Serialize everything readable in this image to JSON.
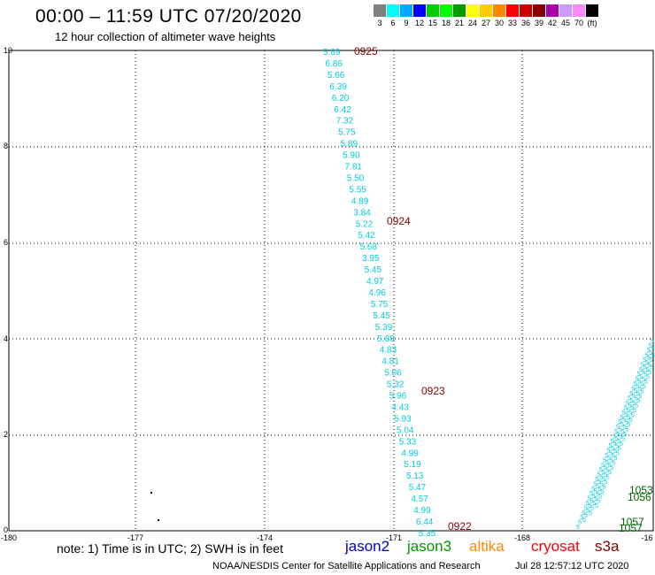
{
  "header": {
    "title": "00:00 – 11:59 UTC 07/20/2020",
    "subtitle": "12 hour collection of altimeter wave heights"
  },
  "legend": {
    "colors": [
      "#808080",
      "#00ffff",
      "#00aaff",
      "#0000ff",
      "#00cc00",
      "#00ff00",
      "#009900",
      "#ffff00",
      "#ffcc00",
      "#ff8800",
      "#ff0000",
      "#cc0000",
      "#880000",
      "#aa00aa",
      "#cc99ff",
      "#ff88ff",
      "#000000"
    ],
    "labels": [
      "3",
      "6",
      "9",
      "12",
      "15",
      "18",
      "21",
      "24",
      "27",
      "30",
      "33",
      "36",
      "39",
      "42",
      "45",
      "70",
      "(ft)"
    ]
  },
  "map": {
    "x_axis_labels": [
      "-180",
      "-177",
      "-174",
      "-171",
      "-168",
      "-16"
    ],
    "y_axis_labels": [
      "10",
      "8",
      "6",
      "4",
      "2",
      "0"
    ],
    "track_color": "#00ccdd",
    "time_color": "#880000",
    "wave_heights": [
      "5.89",
      "6.86",
      "5.66",
      "6.39",
      "6.20",
      "6.42",
      "7.32",
      "5.75",
      "5.89",
      "5.90",
      "7.81",
      "5.50",
      "5.55",
      "4.89",
      "3.84",
      "5.22",
      "5.42",
      "5.68",
      "3.95",
      "5.45",
      "4.97",
      "4.96",
      "5.75",
      "5.45",
      "5.39",
      "5.88",
      "4.83",
      "4.81",
      "5.06",
      "5.32",
      "5.96",
      "4.43",
      "5.93",
      "5.04",
      "5.33",
      "4.99",
      "5.19",
      "5.13",
      "5.47",
      "4.57",
      "4.99",
      "6.44",
      "5.35"
    ],
    "time_labels": [
      "0925",
      "0924",
      "0923",
      "0922"
    ],
    "right_time_labels": [
      "1053",
      "1056",
      "1057",
      "1057"
    ],
    "right_time_color": "#006600"
  },
  "footer": {
    "note": "note:  1) Time is in UTC;  2) SWH is in feet",
    "satellites": [
      {
        "name": "jason2",
        "color": "#0000cc"
      },
      {
        "name": "jason3",
        "color": "#009900"
      },
      {
        "name": "altika",
        "color": "#ff8800"
      },
      {
        "name": "cryosat",
        "color": "#ff0000"
      },
      {
        "name": "s3a",
        "color": "#880000"
      }
    ],
    "credit": "NOAA/NESDIS Center for Satellite Applications and Research",
    "timestamp": "Jul 28 12:57:12 UTC 2020"
  }
}
